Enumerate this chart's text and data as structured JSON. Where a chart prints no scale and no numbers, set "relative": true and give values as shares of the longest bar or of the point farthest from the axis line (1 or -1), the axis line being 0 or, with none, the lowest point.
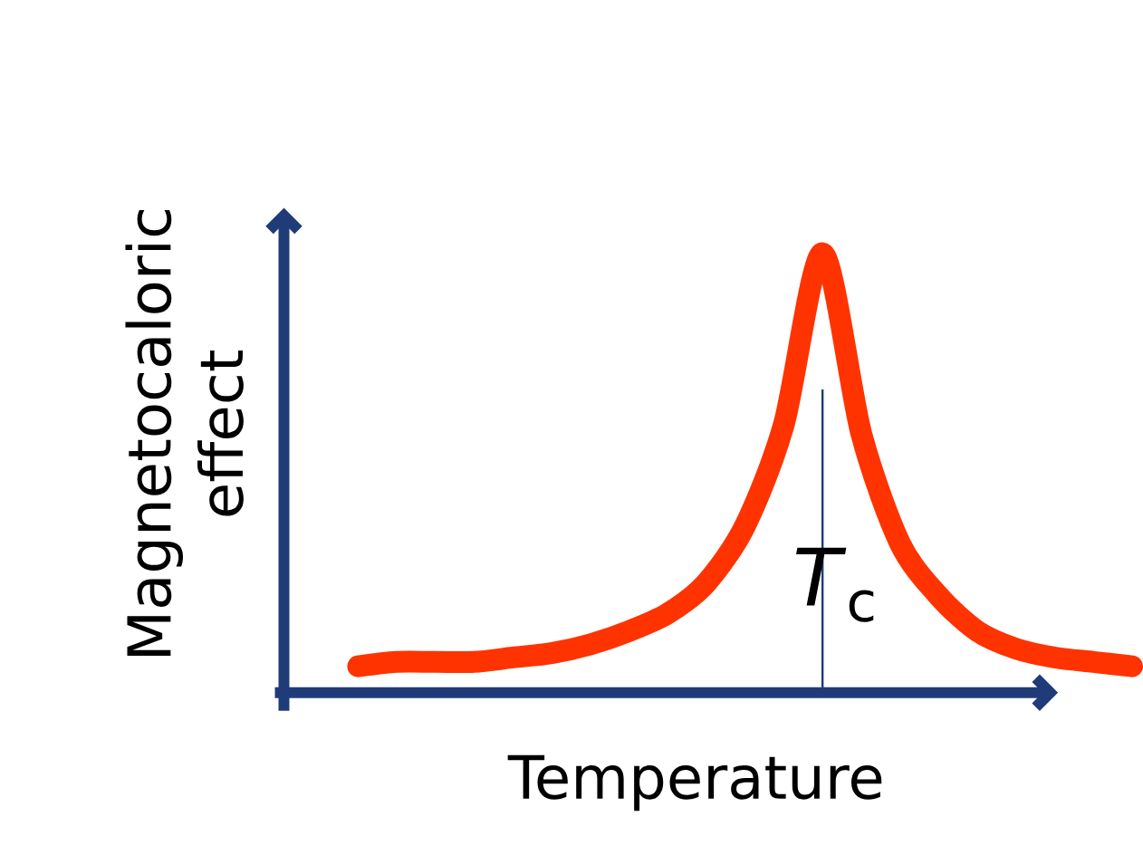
{
  "chart_data": {
    "type": "line",
    "xlabel": "Temperature",
    "ylabel": "Magnetocaloric effect",
    "relative": true,
    "color": "#ff3300",
    "line_style": "solid",
    "categories": [
      null,
      null,
      null,
      null,
      null,
      null,
      null,
      null,
      null,
      null,
      null,
      null,
      null,
      null,
      null,
      null,
      null,
      null,
      null,
      null,
      null
    ],
    "values": [
      0.06,
      0.07,
      0.07,
      0.07,
      0.08,
      0.09,
      0.11,
      0.14,
      0.18,
      0.25,
      0.38,
      0.61,
      1,
      0.59,
      0.34,
      0.22,
      0.14,
      0.1,
      0.08,
      0.07,
      0.06
    ],
    "annotations": [
      "*T*$_{c}$"
    ]
  }
}
